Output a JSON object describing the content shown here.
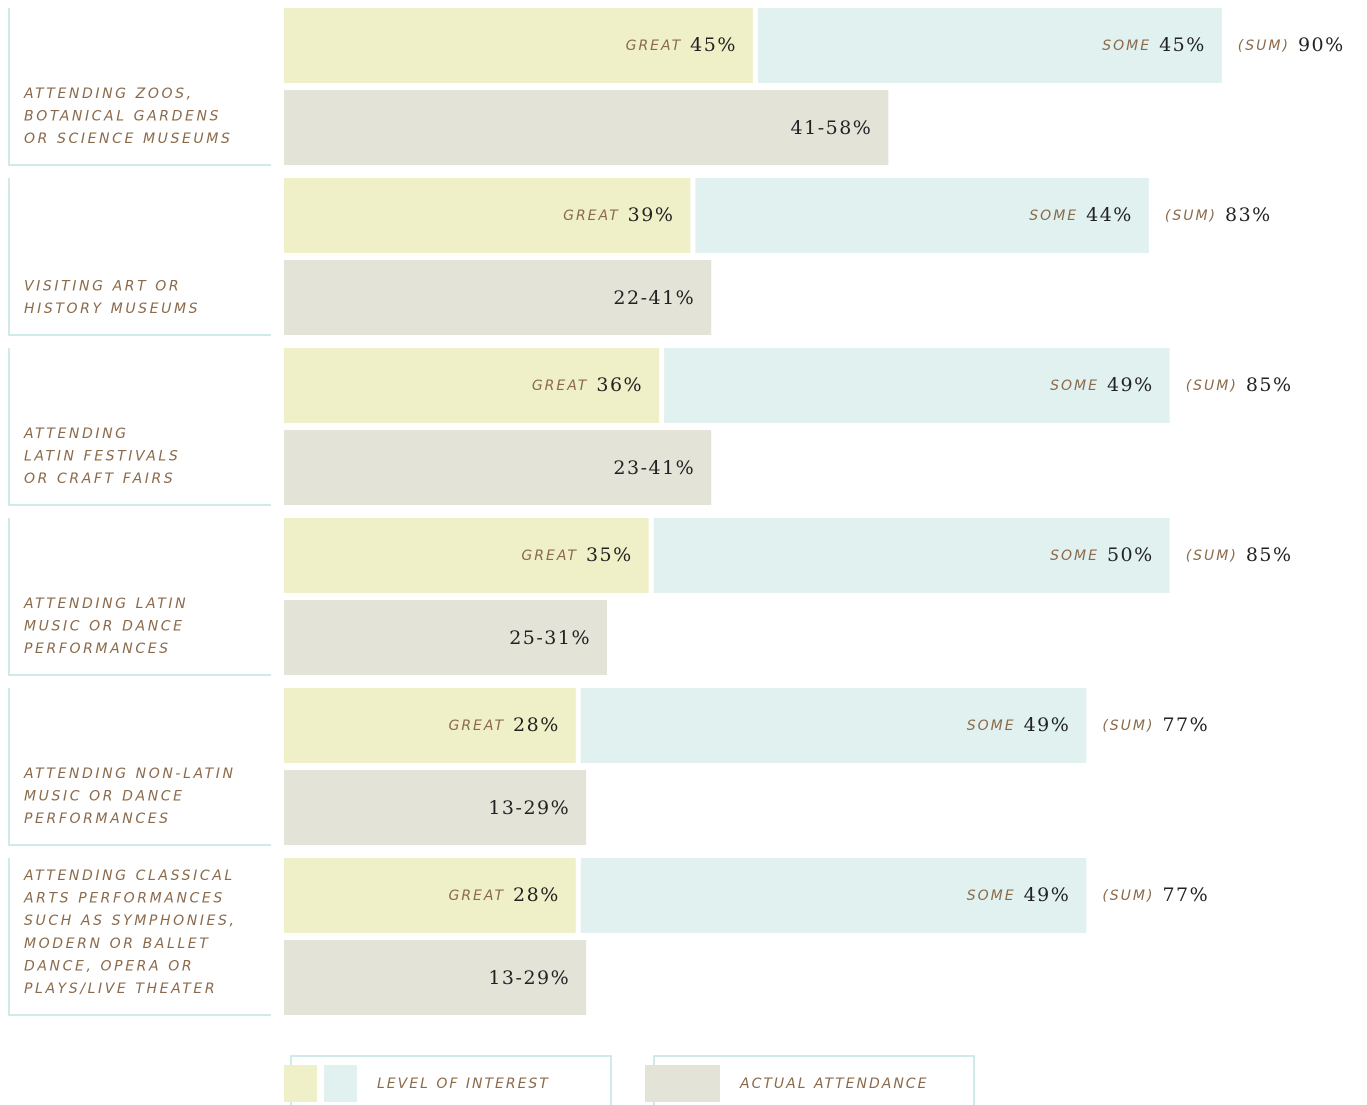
{
  "chart_data": {
    "type": "bar",
    "categories": [
      "ATTENDING ZOOS,\nBOTANICAL GARDENS\nOR SCIENCE MUSEUMS",
      "VISITING ART OR\nHISTORY MUSEUMS",
      "ATTENDING\nLATIN FESTIVALS\nOR CRAFT FAIRS",
      "ATTENDING LATIN\nMUSIC OR DANCE\nPERFORMANCES",
      "ATTENDING NON-LATIN\nMUSIC OR DANCE\nPERFORMANCES",
      "ATTENDING CLASSICAL\nARTS PERFORMANCES\nSUCH AS SYMPHONIES,\nMODERN OR BALLET\nDANCE, OPERA OR\nPLAYS/LIVE THEATER"
    ],
    "xlim": [
      0,
      100
    ],
    "interest_name": "LEVEL OF INTEREST",
    "series": [
      {
        "name": "GREAT",
        "color": "#eff0c8",
        "values": [
          45,
          39,
          36,
          35,
          28,
          28
        ],
        "value_labels": [
          "45%",
          "39%",
          "36%",
          "35%",
          "28%",
          "28%"
        ]
      },
      {
        "name": "SOME",
        "color": "#e0f1f0",
        "values": [
          45,
          44,
          49,
          50,
          49,
          49
        ],
        "value_labels": [
          "45%",
          "44%",
          "49%",
          "50%",
          "49%",
          "49%"
        ]
      }
    ],
    "sum": {
      "name": "(SUM)",
      "values": [
        90,
        83,
        85,
        85,
        77,
        77
      ],
      "value_labels": [
        "90%",
        "83%",
        "85%",
        "85%",
        "77%",
        "77%"
      ]
    },
    "attendance": {
      "name": "ACTUAL ATTENDANCE",
      "color": "#e4e3d8",
      "low": [
        41,
        22,
        23,
        25,
        13,
        13
      ],
      "high": [
        58,
        41,
        41,
        31,
        29,
        29
      ],
      "value_labels": [
        "41-58%",
        "22-41%",
        "23-41%",
        "25-31%",
        "13-29%",
        "13-29%"
      ]
    }
  }
}
